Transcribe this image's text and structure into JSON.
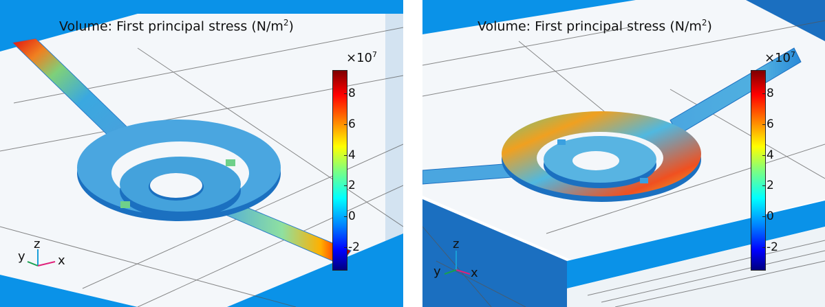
{
  "panels": [
    {
      "id": "left",
      "title_text": "Volume: First principal stress (N/m",
      "title_exp": "2",
      "title_close": ")",
      "colorbar": {
        "multiplier_base": "×10",
        "multiplier_exp": "7",
        "ticks": [
          {
            "label": "8",
            "value": 8
          },
          {
            "label": "6",
            "value": 6
          },
          {
            "label": "4",
            "value": 4
          },
          {
            "label": "2",
            "value": 2
          },
          {
            "label": "0",
            "value": 0
          },
          {
            "label": "-2",
            "value": -2
          }
        ],
        "range": [
          -3.5,
          9.5
        ],
        "colormap": "rainbow"
      },
      "axes": {
        "x": "x",
        "y": "y",
        "z": "z"
      }
    },
    {
      "id": "right",
      "title_text": "Volume: First principal stress (N/m",
      "title_exp": "2",
      "title_close": ")",
      "colorbar": {
        "multiplier_base": "×10",
        "multiplier_exp": "7",
        "ticks": [
          {
            "label": "8",
            "value": 8
          },
          {
            "label": "6",
            "value": 6
          },
          {
            "label": "4",
            "value": 4
          },
          {
            "label": "2",
            "value": 2
          },
          {
            "label": "0",
            "value": 0
          },
          {
            "label": "-2",
            "value": -2
          }
        ],
        "range": [
          -3.5,
          9.5
        ],
        "colormap": "rainbow"
      },
      "axes": {
        "x": "x",
        "y": "y",
        "z": "z"
      }
    }
  ],
  "colors": {
    "substrate": "#0a92e8",
    "substrate_dark": "#1b6fc0",
    "plate": "#f3f6f9",
    "ring": "#4aa6e0",
    "hot": "#ff2a00"
  }
}
